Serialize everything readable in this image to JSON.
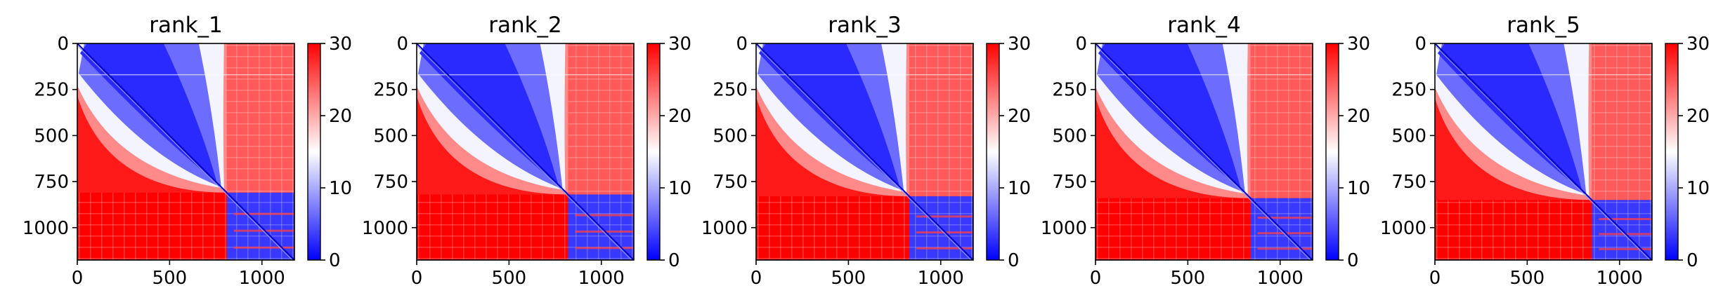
{
  "chart_data": [
    {
      "type": "heatmap",
      "title": "rank_1",
      "xticks": [
        0,
        500,
        1000
      ],
      "yticks": [
        0,
        250,
        500,
        750,
        1000
      ],
      "xlim": [
        0,
        1176
      ],
      "ylim": [
        1176,
        0
      ],
      "colorbar": {
        "ticks": [
          0,
          10,
          20,
          30
        ],
        "range": [
          0,
          30
        ],
        "colormap": "bwr"
      }
    },
    {
      "type": "heatmap",
      "title": "rank_2",
      "xticks": [
        0,
        500,
        1000
      ],
      "yticks": [
        0,
        250,
        500,
        750,
        1000
      ],
      "xlim": [
        0,
        1176
      ],
      "ylim": [
        1176,
        0
      ],
      "colorbar": {
        "ticks": [
          0,
          10,
          20,
          30
        ],
        "range": [
          0,
          30
        ],
        "colormap": "bwr"
      }
    },
    {
      "type": "heatmap",
      "title": "rank_3",
      "xticks": [
        0,
        500,
        1000
      ],
      "yticks": [
        0,
        250,
        500,
        750,
        1000
      ],
      "xlim": [
        0,
        1176
      ],
      "ylim": [
        1176,
        0
      ],
      "colorbar": {
        "ticks": [
          0,
          10,
          20,
          30
        ],
        "range": [
          0,
          30
        ],
        "colormap": "bwr"
      }
    },
    {
      "type": "heatmap",
      "title": "rank_4",
      "xticks": [
        0,
        500,
        1000
      ],
      "yticks": [
        0,
        250,
        500,
        750,
        1000
      ],
      "xlim": [
        0,
        1176
      ],
      "ylim": [
        1176,
        0
      ],
      "colorbar": {
        "ticks": [
          0,
          10,
          20,
          30
        ],
        "range": [
          0,
          30
        ],
        "colormap": "bwr"
      }
    },
    {
      "type": "heatmap",
      "title": "rank_5",
      "xticks": [
        0,
        500,
        1000
      ],
      "yticks": [
        0,
        250,
        500,
        750,
        1000
      ],
      "xlim": [
        0,
        1176
      ],
      "ylim": [
        1176,
        0
      ],
      "colorbar": {
        "ticks": [
          0,
          10,
          20,
          30
        ],
        "range": [
          0,
          30
        ],
        "colormap": "bwr"
      }
    }
  ],
  "colors": {
    "low": "#0000ff",
    "mid": "#ffffff",
    "high": "#ff0000",
    "axis": "#000000"
  }
}
